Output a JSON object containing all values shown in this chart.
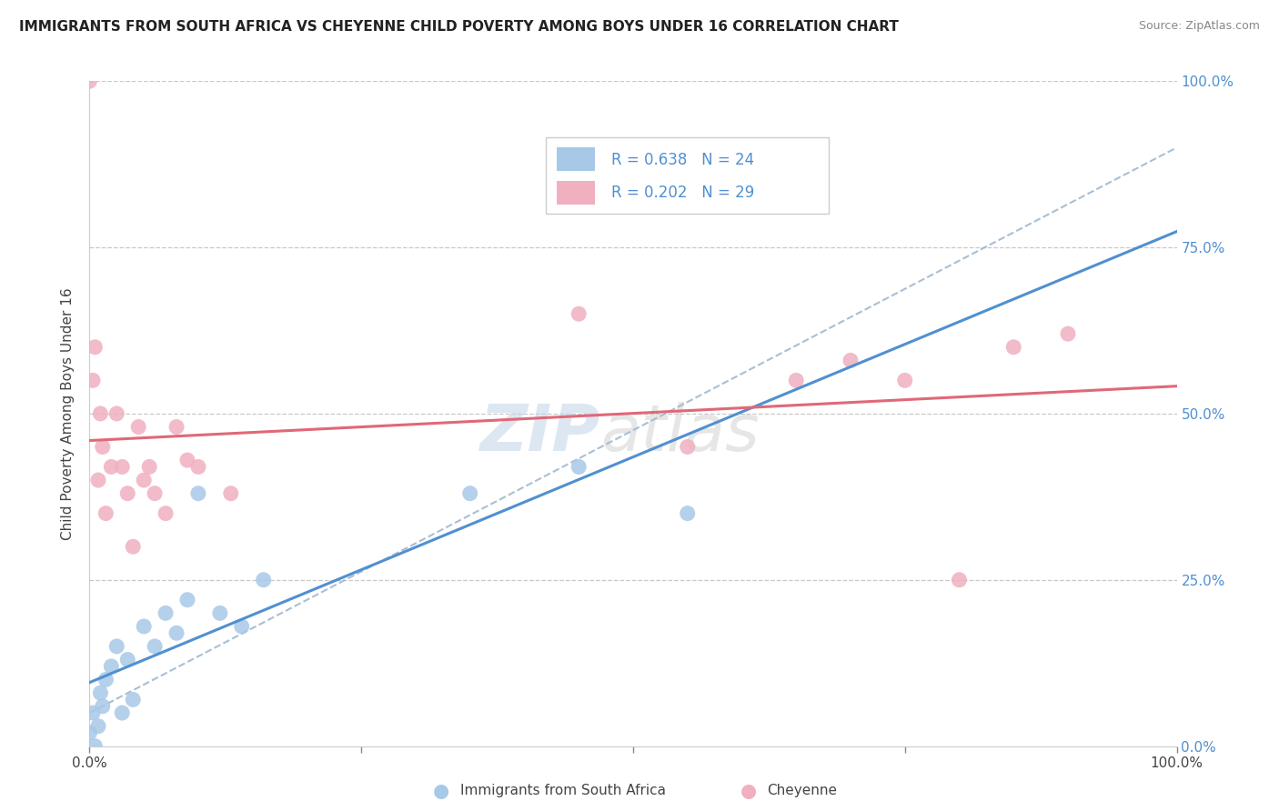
{
  "title": "IMMIGRANTS FROM SOUTH AFRICA VS CHEYENNE CHILD POVERTY AMONG BOYS UNDER 16 CORRELATION CHART",
  "source": "Source: ZipAtlas.com",
  "ylabel": "Child Poverty Among Boys Under 16",
  "legend_blue_label": "Immigrants from South Africa",
  "legend_pink_label": "Cheyenne",
  "legend_blue_r": "R = 0.638",
  "legend_blue_n": "N = 24",
  "legend_pink_r": "R = 0.202",
  "legend_pink_n": "N = 29",
  "blue_color": "#a8c8e8",
  "pink_color": "#f0b0c0",
  "blue_line_color": "#5090d0",
  "pink_line_color": "#e06878",
  "dashed_line_color": "#a0b8d0",
  "watermark_zip": "ZIP",
  "watermark_atlas": "atlas",
  "blue_points_x": [
    0.0,
    0.3,
    0.5,
    0.8,
    1.0,
    1.2,
    1.5,
    2.0,
    2.5,
    3.0,
    3.5,
    4.0,
    5.0,
    6.0,
    7.0,
    8.0,
    9.0,
    10.0,
    12.0,
    14.0,
    16.0,
    35.0,
    45.0,
    55.0
  ],
  "blue_points_y": [
    2.0,
    5.0,
    0.0,
    3.0,
    8.0,
    6.0,
    10.0,
    12.0,
    15.0,
    5.0,
    13.0,
    7.0,
    18.0,
    15.0,
    20.0,
    17.0,
    22.0,
    38.0,
    20.0,
    18.0,
    25.0,
    38.0,
    42.0,
    35.0
  ],
  "pink_points_x": [
    0.0,
    0.3,
    0.5,
    0.8,
    1.0,
    1.2,
    1.5,
    2.0,
    2.5,
    3.0,
    3.5,
    4.0,
    4.5,
    5.0,
    5.5,
    6.0,
    7.0,
    8.0,
    9.0,
    10.0,
    13.0,
    45.0,
    55.0,
    65.0,
    70.0,
    75.0,
    80.0,
    85.0,
    90.0
  ],
  "pink_points_y": [
    100.0,
    55.0,
    60.0,
    40.0,
    50.0,
    45.0,
    35.0,
    42.0,
    50.0,
    42.0,
    38.0,
    30.0,
    48.0,
    40.0,
    42.0,
    38.0,
    35.0,
    48.0,
    43.0,
    42.0,
    38.0,
    65.0,
    45.0,
    55.0,
    58.0,
    55.0,
    25.0,
    60.0,
    62.0
  ],
  "xlim": [
    0,
    100
  ],
  "ylim": [
    0,
    100
  ],
  "xticks": [
    0,
    25,
    50,
    75,
    100
  ],
  "yticks": [
    0,
    25,
    50,
    75,
    100
  ],
  "background_color": "#ffffff",
  "grid_color": "#c8c8c8"
}
